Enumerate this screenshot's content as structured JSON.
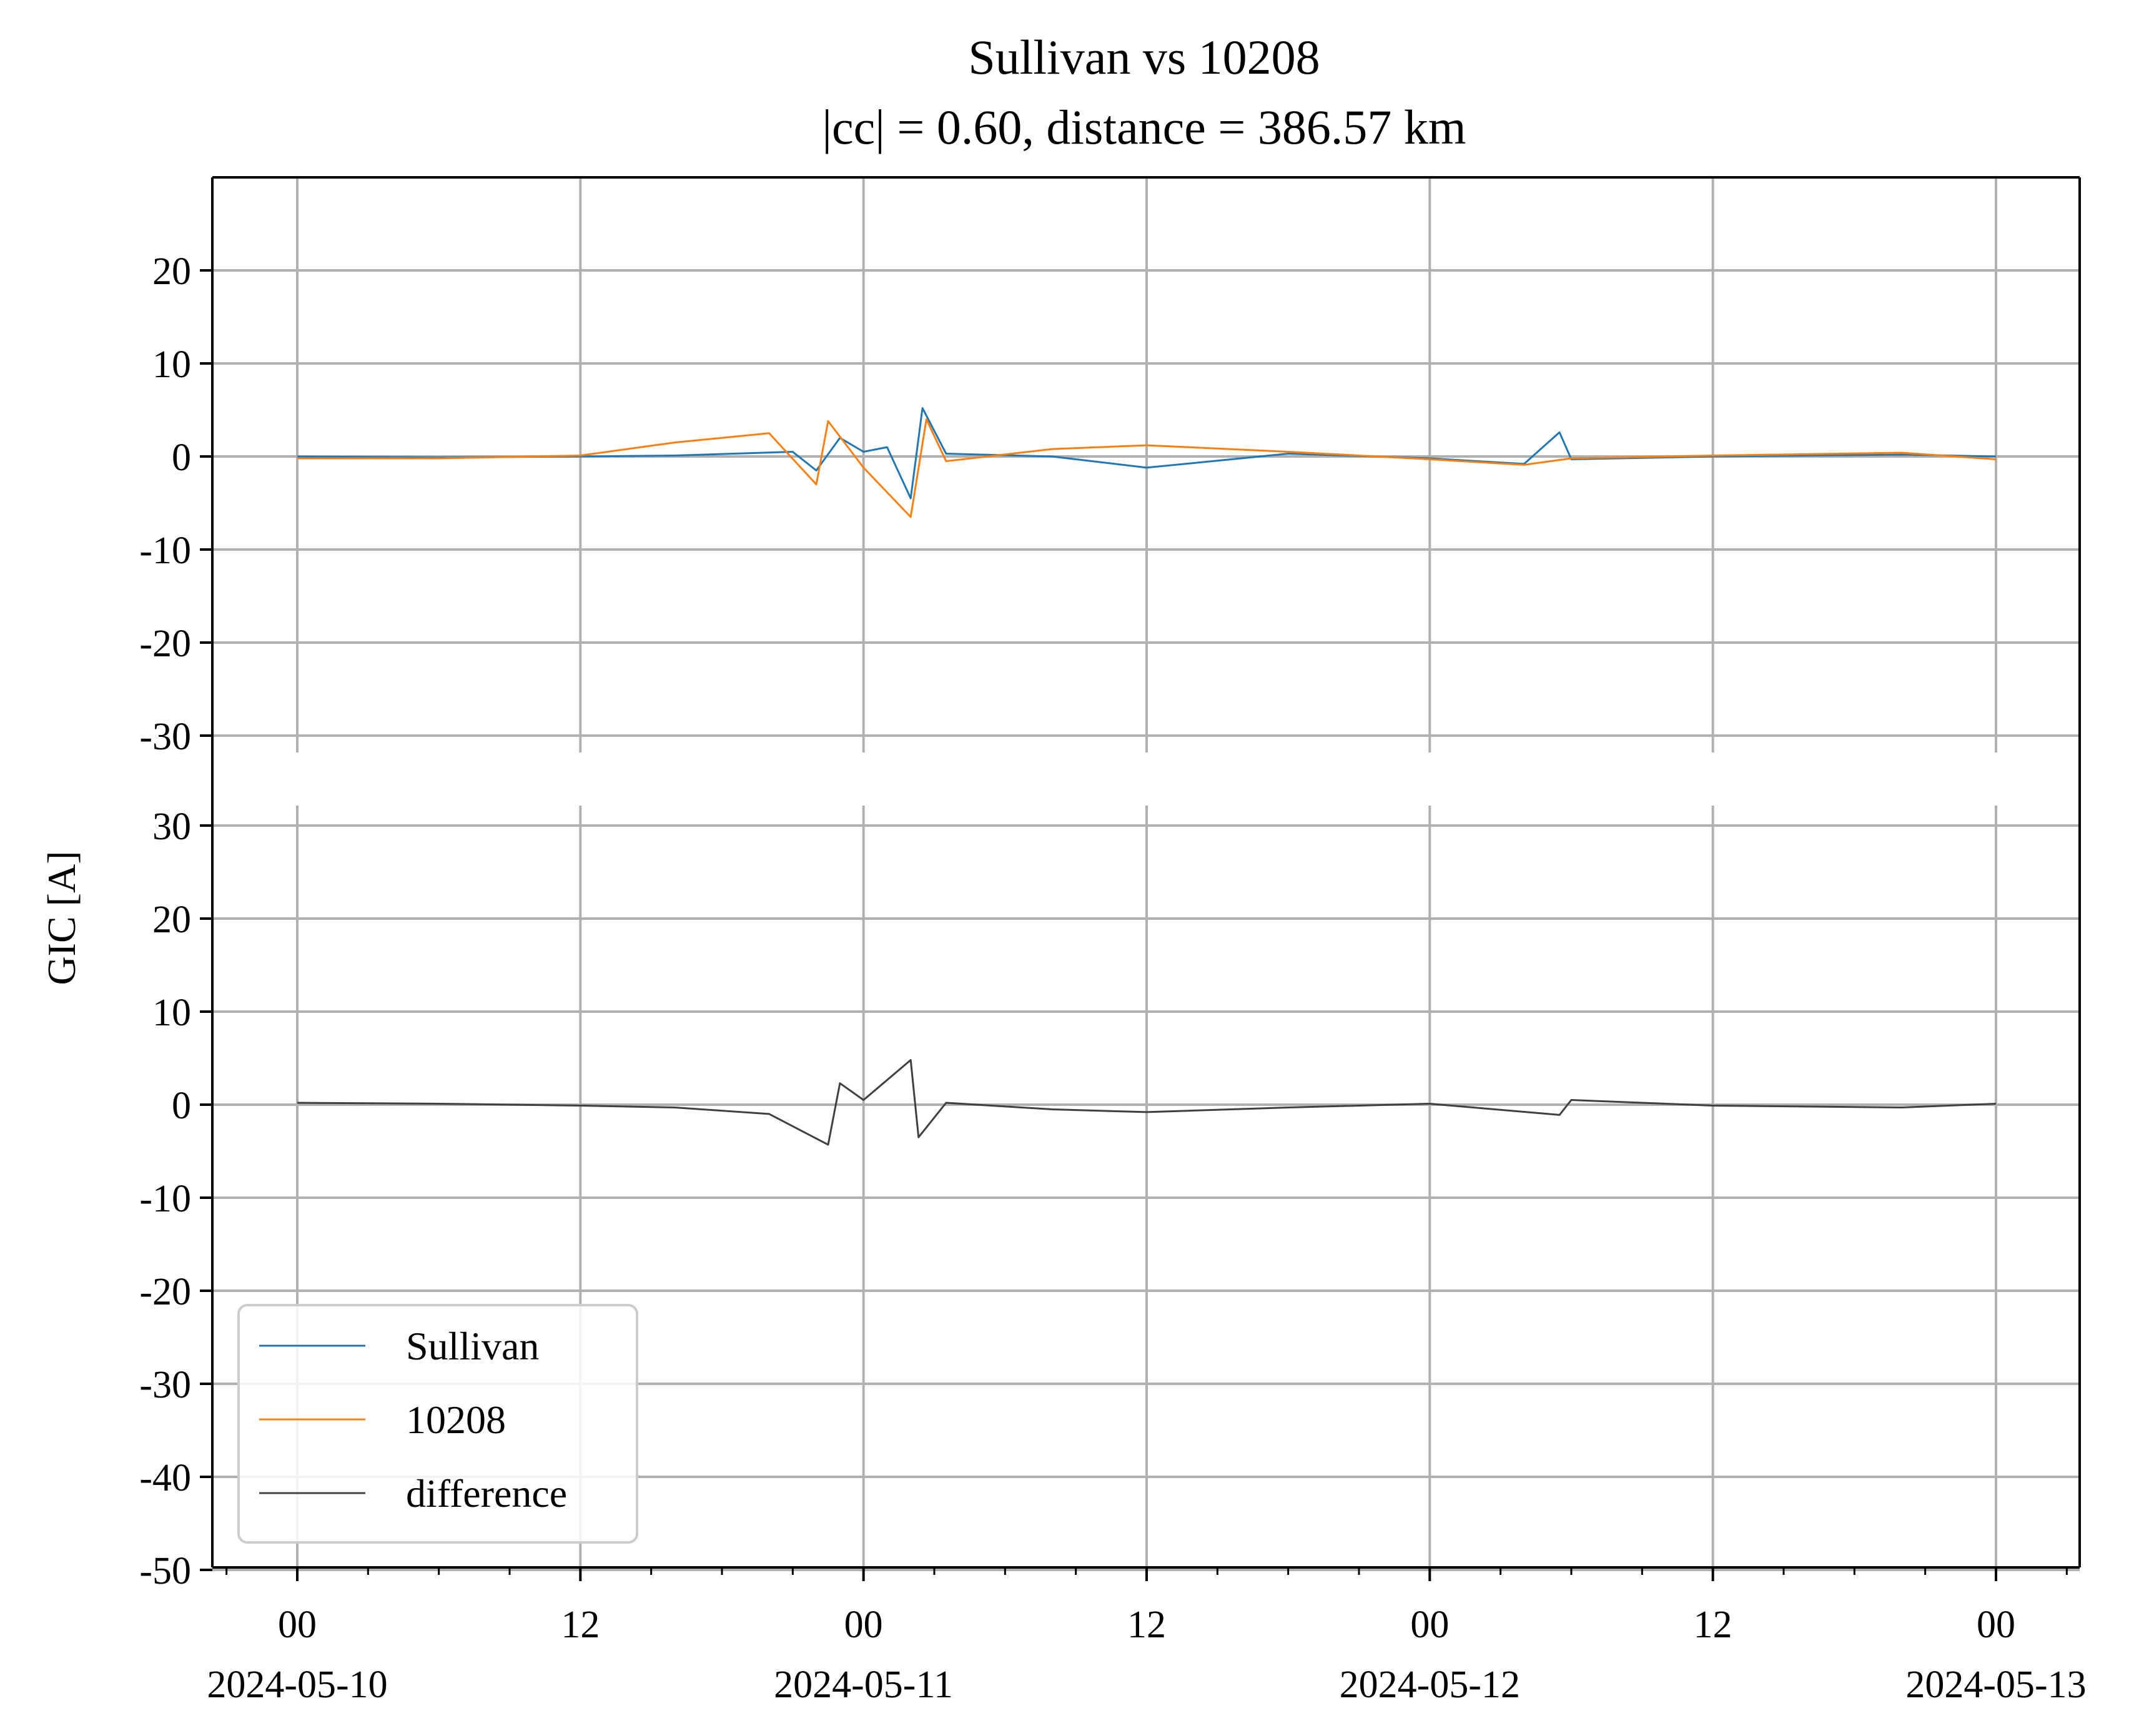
{
  "chart_data": {
    "type": "line",
    "title_line1": "Sullivan vs 10208",
    "title_line2": "|cc| = 0.60, distance = 386.57 km",
    "ylabel": "GIC [A]",
    "grid": true,
    "legend_placement": "lower-left",
    "x_axis": {
      "start": "2024-05-10T00:00",
      "end": "2024-05-13T00:00",
      "ticks": [
        {
          "time": "2024-05-10T00:00",
          "label": "00",
          "sublabel": "2024-05-10"
        },
        {
          "time": "2024-05-10T12:00",
          "label": "12",
          "sublabel": ""
        },
        {
          "time": "2024-05-11T00:00",
          "label": "00",
          "sublabel": "2024-05-11"
        },
        {
          "time": "2024-05-11T12:00",
          "label": "12",
          "sublabel": ""
        },
        {
          "time": "2024-05-12T00:00",
          "label": "00",
          "sublabel": "2024-05-12"
        },
        {
          "time": "2024-05-12T12:00",
          "label": "12",
          "sublabel": ""
        },
        {
          "time": "2024-05-13T00:00",
          "label": "00",
          "sublabel": "2024-05-13"
        }
      ]
    },
    "panels": [
      {
        "ylim": [
          -30,
          30
        ],
        "yticks": [
          "20",
          "10",
          "0",
          "-10",
          "-20",
          "-30"
        ],
        "series": [
          {
            "name": "Sullivan",
            "color": "#1f77b4",
            "points": [
              [
                "2024-05-10T00:00",
                0.0
              ],
              [
                "2024-05-10T06:00",
                -0.1
              ],
              [
                "2024-05-10T12:00",
                0.0
              ],
              [
                "2024-05-10T16:00",
                0.1
              ],
              [
                "2024-05-10T21:00",
                0.5
              ],
              [
                "2024-05-10T22:00",
                -1.5
              ],
              [
                "2024-05-10T23:00",
                2.0
              ],
              [
                "2024-05-11T00:00",
                0.5
              ],
              [
                "2024-05-11T01:00",
                1.0
              ],
              [
                "2024-05-11T02:00",
                -4.5
              ],
              [
                "2024-05-11T02:30",
                5.2
              ],
              [
                "2024-05-11T03:30",
                0.3
              ],
              [
                "2024-05-11T08:00",
                0.0
              ],
              [
                "2024-05-11T12:00",
                -1.2
              ],
              [
                "2024-05-11T18:00",
                0.3
              ],
              [
                "2024-05-12T00:00",
                -0.2
              ],
              [
                "2024-05-12T04:00",
                -0.8
              ],
              [
                "2024-05-12T05:30",
                2.6
              ],
              [
                "2024-05-12T06:00",
                -0.3
              ],
              [
                "2024-05-12T12:00",
                0.0
              ],
              [
                "2024-05-12T20:00",
                0.2
              ],
              [
                "2024-05-13T00:00",
                0.0
              ]
            ]
          },
          {
            "name": "10208",
            "color": "#ff7f0e",
            "points": [
              [
                "2024-05-10T00:00",
                -0.2
              ],
              [
                "2024-05-10T06:00",
                -0.2
              ],
              [
                "2024-05-10T12:00",
                0.1
              ],
              [
                "2024-05-10T16:00",
                1.5
              ],
              [
                "2024-05-10T20:00",
                2.5
              ],
              [
                "2024-05-10T22:00",
                -3.0
              ],
              [
                "2024-05-10T22:30",
                3.8
              ],
              [
                "2024-05-11T00:00",
                -1.2
              ],
              [
                "2024-05-11T02:00",
                -6.5
              ],
              [
                "2024-05-11T02:40",
                4.0
              ],
              [
                "2024-05-11T03:30",
                -0.5
              ],
              [
                "2024-05-11T08:00",
                0.8
              ],
              [
                "2024-05-11T12:00",
                1.2
              ],
              [
                "2024-05-11T18:00",
                0.5
              ],
              [
                "2024-05-12T00:00",
                -0.3
              ],
              [
                "2024-05-12T04:00",
                -0.9
              ],
              [
                "2024-05-12T06:00",
                -0.2
              ],
              [
                "2024-05-12T12:00",
                0.1
              ],
              [
                "2024-05-12T20:00",
                0.4
              ],
              [
                "2024-05-13T00:00",
                -0.3
              ]
            ]
          }
        ]
      },
      {
        "ylim": [
          -50,
          32
        ],
        "yticks": [
          "30",
          "20",
          "10",
          "0",
          "-10",
          "-20",
          "-30",
          "-40",
          "-50"
        ],
        "series": [
          {
            "name": "difference",
            "color": "#404040",
            "points": [
              [
                "2024-05-10T00:00",
                0.2
              ],
              [
                "2024-05-10T06:00",
                0.1
              ],
              [
                "2024-05-10T12:00",
                -0.1
              ],
              [
                "2024-05-10T16:00",
                -0.3
              ],
              [
                "2024-05-10T20:00",
                -1.0
              ],
              [
                "2024-05-10T22:30",
                -4.3
              ],
              [
                "2024-05-10T23:00",
                2.3
              ],
              [
                "2024-05-11T00:00",
                0.5
              ],
              [
                "2024-05-11T02:00",
                4.8
              ],
              [
                "2024-05-11T02:20",
                -3.5
              ],
              [
                "2024-05-11T03:30",
                0.2
              ],
              [
                "2024-05-11T08:00",
                -0.5
              ],
              [
                "2024-05-11T12:00",
                -0.8
              ],
              [
                "2024-05-11T18:00",
                -0.3
              ],
              [
                "2024-05-12T00:00",
                0.1
              ],
              [
                "2024-05-12T05:30",
                -1.1
              ],
              [
                "2024-05-12T06:00",
                0.5
              ],
              [
                "2024-05-12T12:00",
                -0.1
              ],
              [
                "2024-05-12T20:00",
                -0.3
              ],
              [
                "2024-05-13T00:00",
                0.1
              ]
            ]
          }
        ]
      }
    ],
    "legend": [
      "Sullivan",
      "10208",
      "difference"
    ]
  }
}
